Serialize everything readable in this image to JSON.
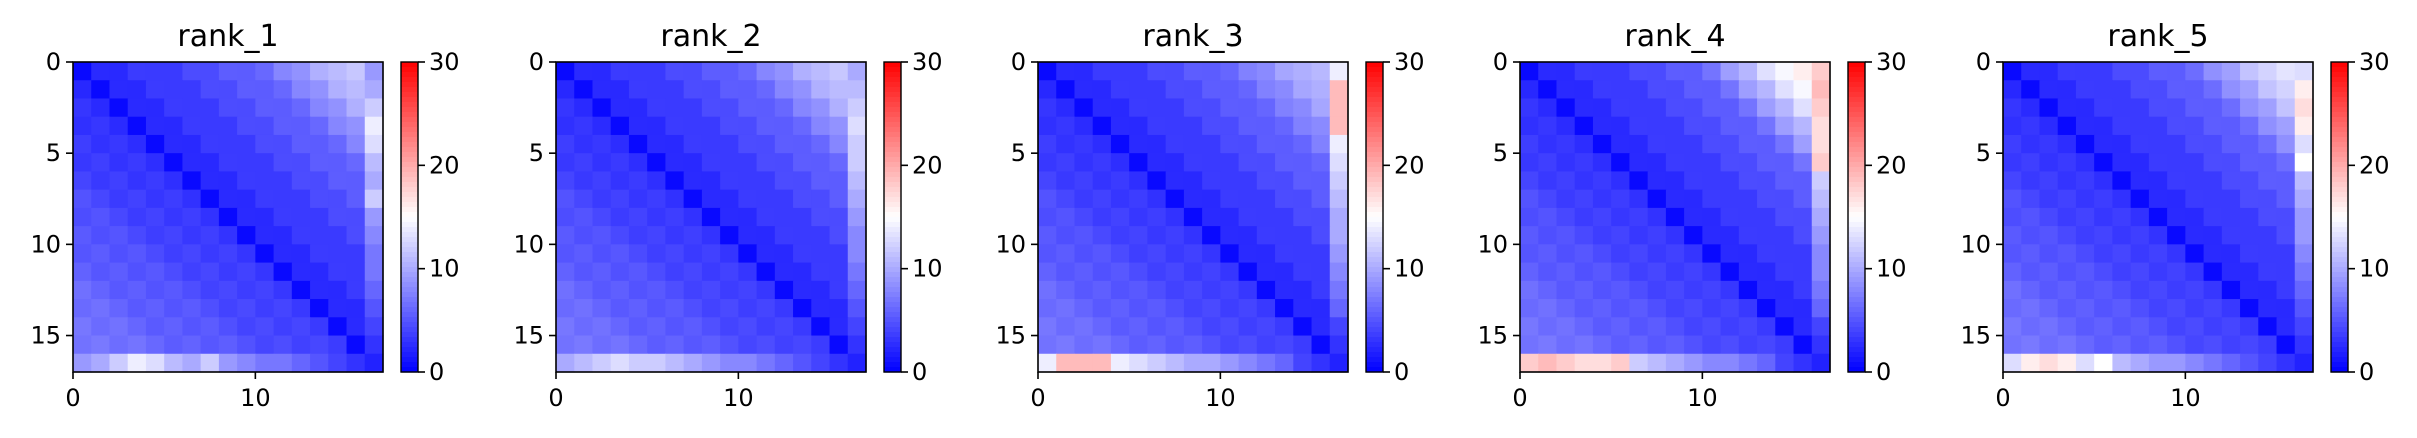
{
  "figure": {
    "colormap": "bwr",
    "colormap_stops": [
      "#0000ff",
      "#ffffff",
      "#ff0000"
    ],
    "axis_color": "#000000"
  },
  "chart_data": [
    {
      "type": "heatmap",
      "title": "rank_1",
      "size": 17,
      "xticks": [
        0,
        10
      ],
      "yticks": [
        0,
        5,
        10,
        15
      ],
      "vmin": 0,
      "vmax": 30,
      "colorbar_ticks": [
        0,
        10,
        20,
        30
      ],
      "corner_max": 12,
      "bottom_row": [
        9,
        10,
        12,
        14,
        13,
        11,
        10,
        12,
        9,
        8,
        7,
        7,
        6,
        5,
        4,
        3,
        2
      ]
    },
    {
      "type": "heatmap",
      "title": "rank_2",
      "size": 17,
      "xticks": [
        0,
        10
      ],
      "yticks": [
        0,
        5,
        10,
        15
      ],
      "vmin": 0,
      "vmax": 30,
      "colorbar_ticks": [
        0,
        10,
        20,
        30
      ],
      "corner_max": 12,
      "bottom_row": [
        10,
        11,
        12,
        13,
        12,
        12,
        11,
        10,
        9,
        8,
        8,
        7,
        6,
        5,
        4,
        3,
        2
      ]
    },
    {
      "type": "heatmap",
      "title": "rank_3",
      "size": 17,
      "xticks": [
        0,
        10
      ],
      "yticks": [
        0,
        5,
        10,
        15
      ],
      "vmin": 0,
      "vmax": 30,
      "colorbar_ticks": [
        0,
        10,
        20,
        30
      ],
      "corner_max": 11,
      "bottom_row": [
        14,
        19,
        19,
        19,
        14,
        13,
        12,
        11,
        10,
        10,
        9,
        8,
        7,
        6,
        4,
        3,
        2
      ]
    },
    {
      "type": "heatmap",
      "title": "rank_4",
      "size": 17,
      "xticks": [
        0,
        10
      ],
      "yticks": [
        0,
        5,
        10,
        15
      ],
      "vmin": 0,
      "vmax": 30,
      "colorbar_ticks": [
        0,
        10,
        20,
        30
      ],
      "corner_max": 17,
      "bottom_row": [
        18,
        19,
        18,
        17,
        17,
        18,
        12,
        11,
        10,
        9,
        8,
        8,
        7,
        6,
        4,
        3,
        2
      ]
    },
    {
      "type": "heatmap",
      "title": "rank_5",
      "size": 17,
      "xticks": [
        0,
        10
      ],
      "yticks": [
        0,
        5,
        10,
        15
      ],
      "vmin": 0,
      "vmax": 30,
      "colorbar_ticks": [
        0,
        10,
        20,
        30
      ],
      "corner_max": 14,
      "bottom_row": [
        13,
        16,
        17,
        16,
        13,
        15,
        11,
        10,
        9,
        9,
        8,
        7,
        6,
        5,
        4,
        3,
        2
      ]
    }
  ]
}
